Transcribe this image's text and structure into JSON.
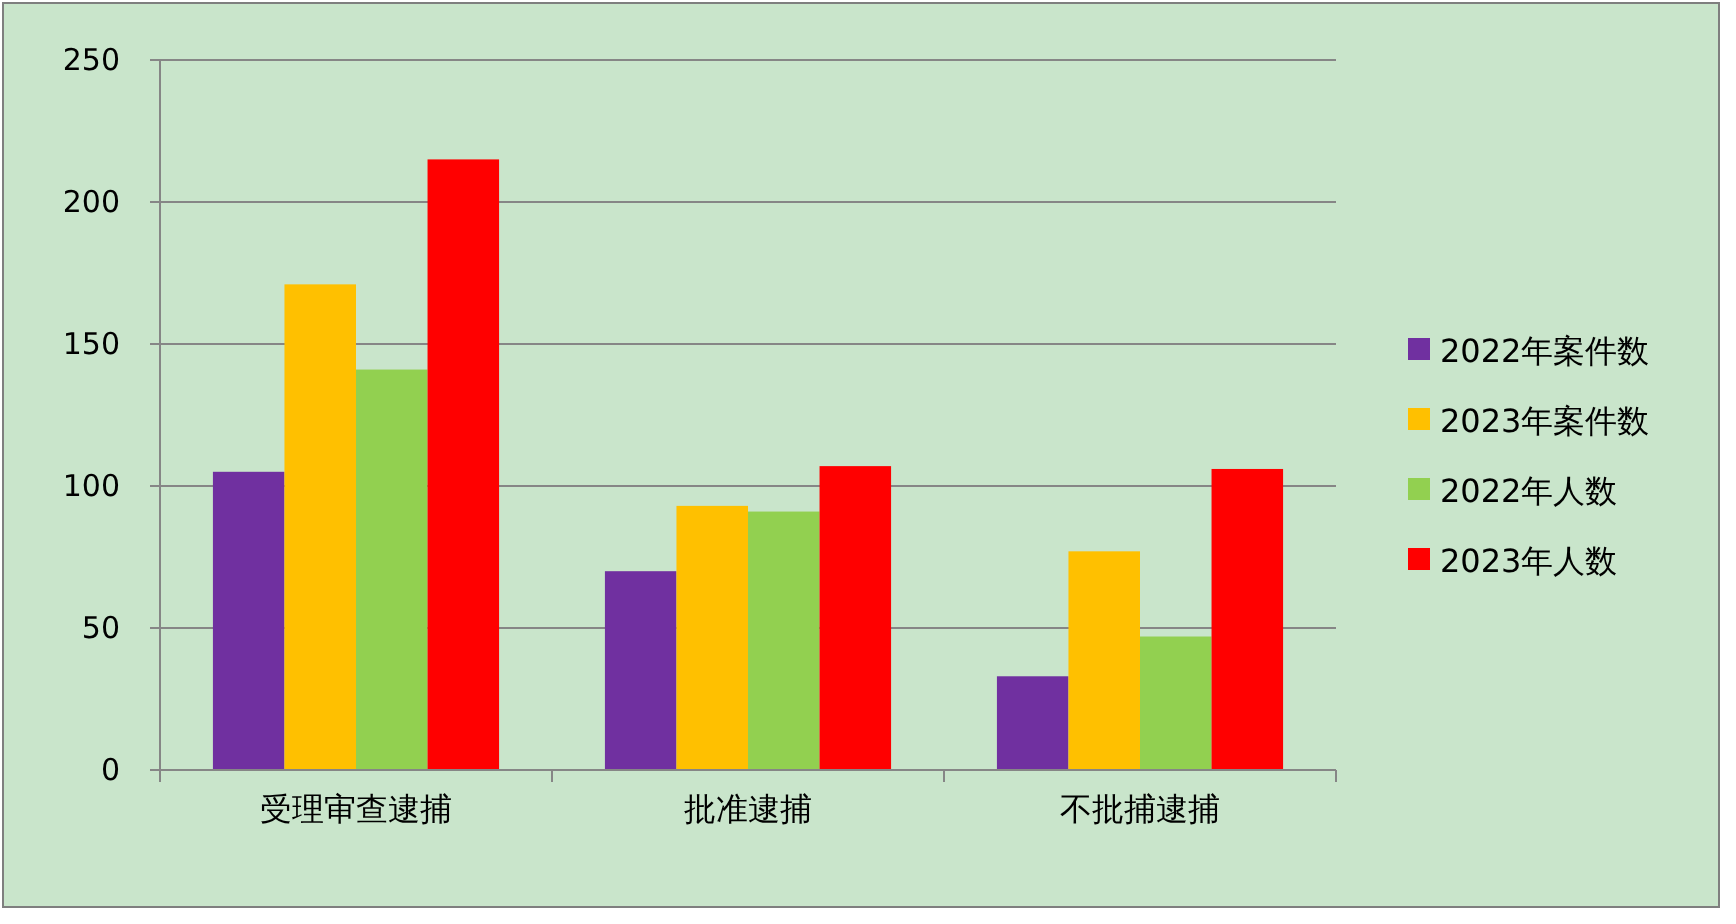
{
  "chart_data": {
    "type": "bar",
    "categories": [
      "受理审查逮捕",
      "批准逮捕",
      "不批捕逮捕"
    ],
    "series": [
      {
        "name": "2022年案件数",
        "color": "#7030a0",
        "values": [
          105,
          70,
          33
        ]
      },
      {
        "name": "2023年案件数",
        "color": "#ffc000",
        "values": [
          171,
          93,
          77
        ]
      },
      {
        "name": "2022年人数",
        "color": "#92d050",
        "values": [
          141,
          91,
          47
        ]
      },
      {
        "name": "2023年人数",
        "color": "#ff0000",
        "values": [
          215,
          107,
          106
        ]
      }
    ],
    "ylim": [
      0,
      250
    ],
    "yticks": [
      0,
      50,
      100,
      150,
      200,
      250
    ],
    "grid": "y",
    "legend": "right"
  }
}
